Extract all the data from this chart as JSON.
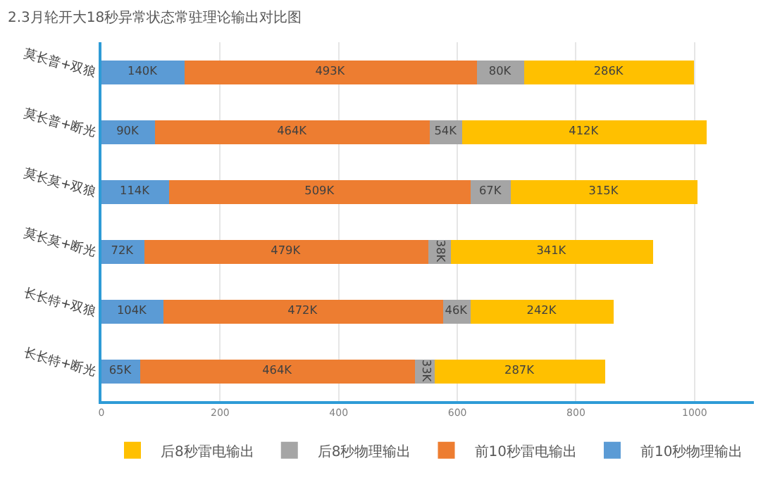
{
  "chart_data": {
    "type": "bar",
    "orientation": "horizontal",
    "stacked": true,
    "title": "2.3月轮开大18秒异常状态常驻理论输出对比图",
    "categories": [
      "莫长普+双狼",
      "莫长普+断光",
      "莫长莫+双狼",
      "莫长莫+断光",
      "长长特+双狼",
      "长长特+断光"
    ],
    "series": [
      {
        "name": "前10秒物理输出",
        "color": "#5b9bd5",
        "values": [
          140,
          90,
          114,
          72,
          104,
          65
        ],
        "value_labels": [
          "140K",
          "90K",
          "114K",
          "72K",
          "104K",
          "65K"
        ]
      },
      {
        "name": "前10秒雷电输出",
        "color": "#ed7d31",
        "values": [
          493,
          464,
          509,
          479,
          472,
          464
        ],
        "value_labels": [
          "493K",
          "464K",
          "509K",
          "479K",
          "472K",
          "464K"
        ]
      },
      {
        "name": "后8秒物理输出",
        "color": "#a5a5a5",
        "values": [
          80,
          54,
          67,
          38,
          46,
          33
        ],
        "value_labels": [
          "80K",
          "54K",
          "67K",
          "38K",
          "46K",
          "33K"
        ]
      },
      {
        "name": "后8秒雷电输出",
        "color": "#ffc000",
        "values": [
          286,
          412,
          315,
          341,
          242,
          287
        ],
        "value_labels": [
          "286K",
          "412K",
          "315K",
          "341K",
          "242K",
          "287K"
        ]
      }
    ],
    "xlim": [
      0,
      1100
    ],
    "xticks": [
      0,
      200,
      400,
      600,
      800,
      1000
    ],
    "grid": "x",
    "legend": "bottom"
  }
}
